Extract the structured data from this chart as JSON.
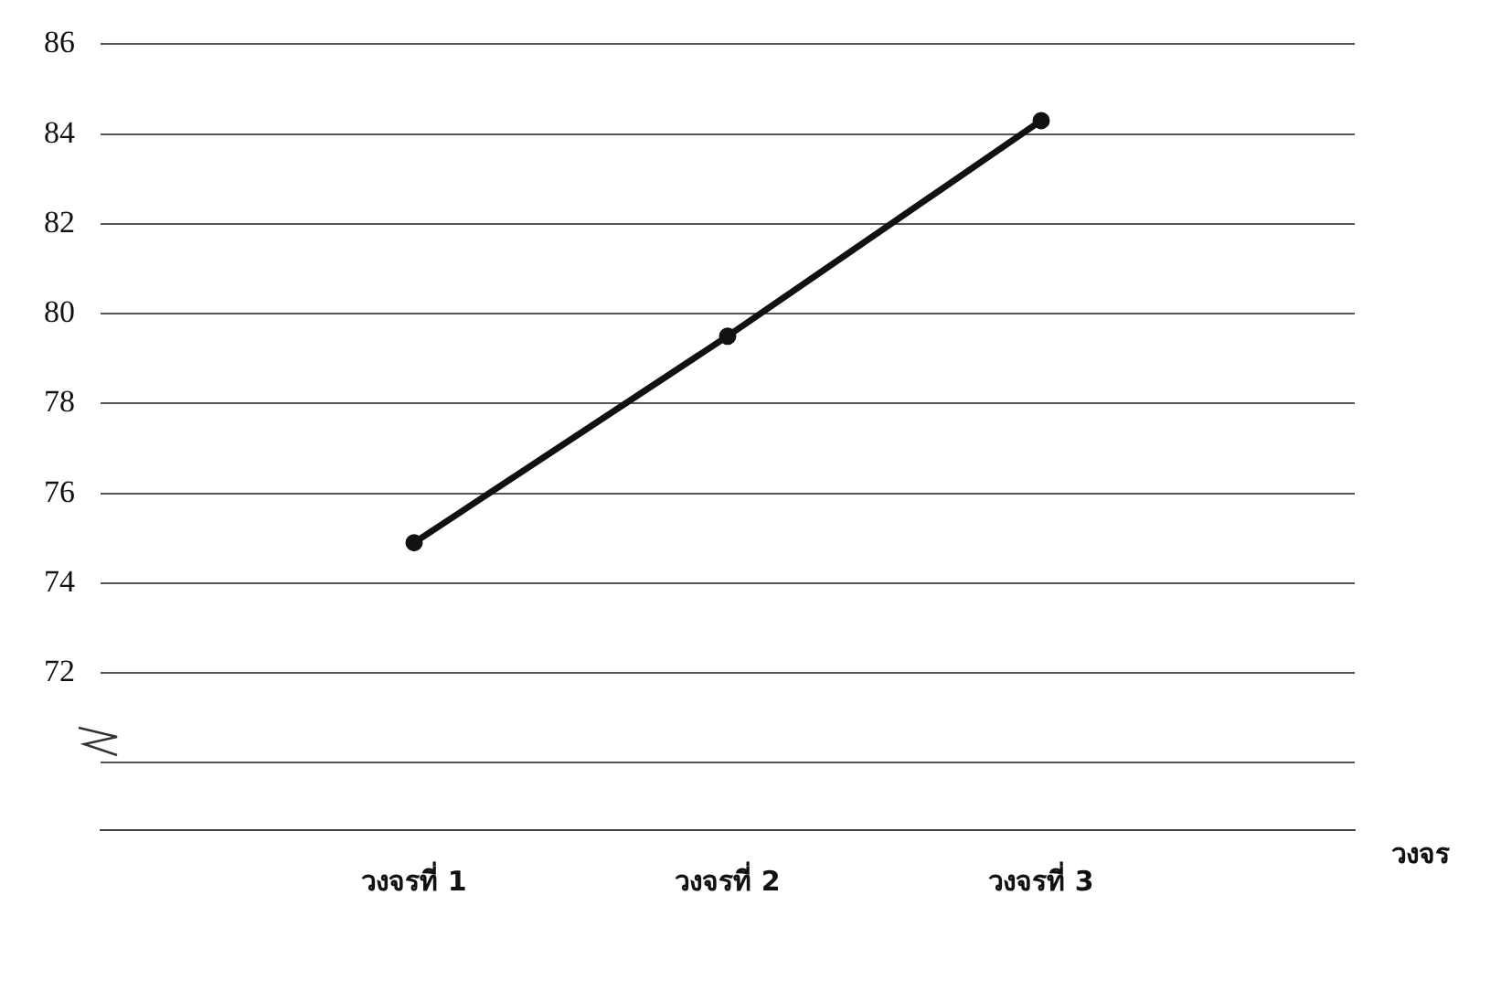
{
  "chart_data": {
    "type": "line",
    "xlabel": "วงจร",
    "categories": [
      "วงจรที่ 1",
      "วงจรที่ 2",
      "วงจรที่ 3"
    ],
    "series": [
      {
        "color": "#111111",
        "values": [
          74.9,
          79.5,
          84.3
        ]
      }
    ],
    "ylim": [
      68.5,
      86
    ],
    "yticks": [
      {
        "value": 70,
        "label": null
      },
      72,
      74,
      76,
      78,
      80,
      82,
      84,
      86
    ],
    "grid": "y",
    "legend": false,
    "marker": "circle",
    "line_style": "solid"
  }
}
